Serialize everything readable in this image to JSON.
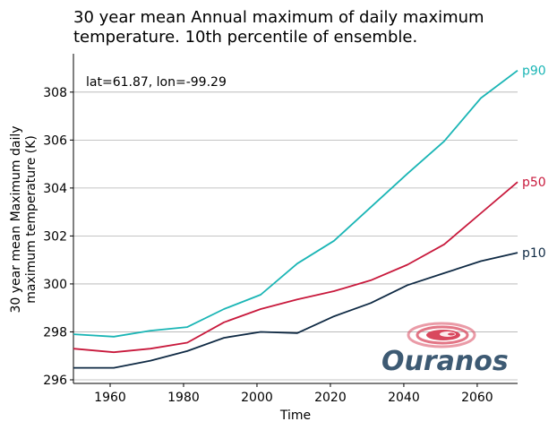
{
  "chart_data": {
    "type": "line",
    "title_lines": [
      "30 year mean Annual maximum of daily maximum",
      "temperature. 10th percentile of ensemble."
    ],
    "xlabel": "Time",
    "ylabel_lines": [
      "30 year mean Maximum daily",
      "maximum temperature (K)"
    ],
    "annotation": "lat=61.87, lon=-99.29",
    "xlim": [
      1950,
      2071
    ],
    "ylim": [
      295.85,
      309.6
    ],
    "x_ticks": [
      1960,
      1980,
      2000,
      2020,
      2040,
      2060
    ],
    "y_ticks": [
      296,
      298,
      300,
      302,
      304,
      306,
      308
    ],
    "grid": "horizontal",
    "x": [
      1950,
      1961,
      1971,
      1981,
      1991,
      2001,
      2011,
      2021,
      2031,
      2041,
      2051,
      2061,
      2071
    ],
    "series": [
      {
        "name": "p90",
        "color": "#1ab5b5",
        "values": [
          297.9,
          297.8,
          298.05,
          298.2,
          298.95,
          299.55,
          300.85,
          301.8,
          303.2,
          304.6,
          305.95,
          307.75,
          308.9
        ]
      },
      {
        "name": "p50",
        "color": "#c8193c",
        "values": [
          297.3,
          297.15,
          297.3,
          297.55,
          298.4,
          298.95,
          299.35,
          299.7,
          300.15,
          300.8,
          301.65,
          302.95,
          304.25
        ]
      },
      {
        "name": "p10",
        "color": "#0f2a44",
        "values": [
          296.5,
          296.5,
          296.8,
          297.2,
          297.75,
          298.0,
          297.95,
          298.65,
          299.2,
          299.95,
          300.45,
          300.95,
          301.3
        ]
      }
    ]
  },
  "logo": {
    "text": "Ouranos",
    "text_color": "#3d5a73",
    "swirl_color": "#d9485e"
  }
}
